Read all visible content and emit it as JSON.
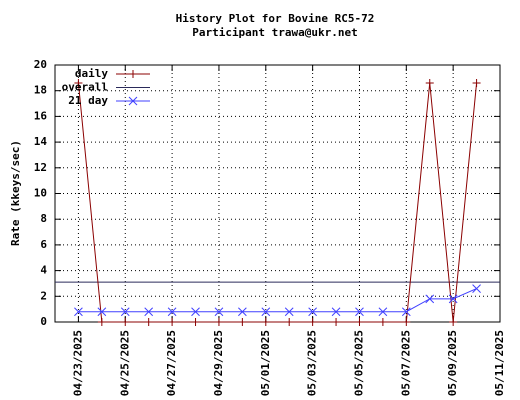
{
  "chart_data": {
    "type": "line",
    "title": "History Plot for Bovine RC5-72",
    "subtitle": "Participant trawa@ukr.net",
    "y_label": "Rate (kkeys/sec)",
    "x": [
      "04/23/2025",
      "04/24/2025",
      "04/25/2025",
      "04/26/2025",
      "04/27/2025",
      "04/28/2025",
      "04/29/2025",
      "04/30/2025",
      "05/01/2025",
      "05/02/2025",
      "05/03/2025",
      "05/04/2025",
      "05/05/2025",
      "05/06/2025",
      "05/07/2025",
      "05/08/2025",
      "05/09/2025",
      "05/10/2025"
    ],
    "series": [
      {
        "name": "daily",
        "color": "#8b0000",
        "marker": "+",
        "values": [
          18.6,
          0,
          0,
          0,
          0,
          0,
          0,
          0,
          0,
          0,
          0,
          0,
          0,
          0,
          0,
          18.6,
          0,
          18.6
        ]
      },
      {
        "name": "21 day",
        "color": "#4040ff",
        "marker": "x",
        "values": [
          0.8,
          0.8,
          0.8,
          0.8,
          0.8,
          0.8,
          0.8,
          0.8,
          0.8,
          0.8,
          0.8,
          0.8,
          0.8,
          0.8,
          0.8,
          1.8,
          1.8,
          2.6
        ]
      }
    ],
    "reference": {
      "name": "overall",
      "color": "#2a2a5a",
      "value": 3.1
    },
    "xlim": [
      "04/22/2025",
      "05/11/2025"
    ],
    "xticks": [
      "04/23/2025",
      "04/25/2025",
      "04/27/2025",
      "04/29/2025",
      "05/01/2025",
      "05/03/2025",
      "05/05/2025",
      "05/07/2025",
      "05/09/2025",
      "05/11/2025"
    ],
    "ylim": [
      0,
      20
    ],
    "yticks": [
      0,
      2,
      4,
      6,
      8,
      10,
      12,
      14,
      16,
      18,
      20
    ],
    "grid": true,
    "legend": "top-left"
  }
}
